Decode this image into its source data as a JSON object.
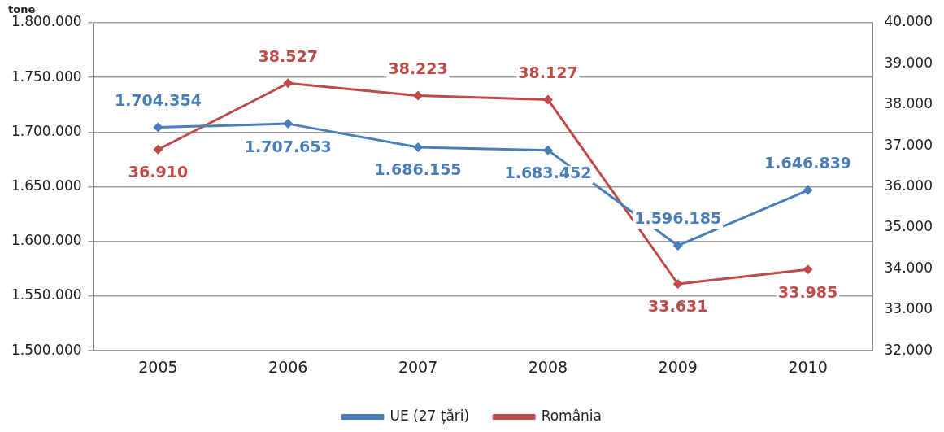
{
  "chart_data": {
    "type": "line",
    "ylabel": "tone",
    "categories": [
      "2005",
      "2006",
      "2007",
      "2008",
      "2009",
      "2010"
    ],
    "series": [
      {
        "name": "UE (27 țări)",
        "color": "#4a7ebb",
        "values": [
          1704354,
          1707653,
          1686155,
          1683452,
          1596185,
          1646839
        ],
        "value_labels": [
          "1.704.354",
          "1.707.653",
          "1.686.155",
          "1.683.452",
          "1.596.185",
          "1.646.839"
        ]
      },
      {
        "name": "România",
        "color": "#be4b48",
        "axis": "y2",
        "values": [
          36910,
          38527,
          38223,
          38127,
          33631,
          33985
        ],
        "value_labels": [
          "36.910",
          "38.527",
          "38.223",
          "38.127",
          "33.631",
          "33.985"
        ]
      }
    ],
    "ylim": [
      1500000,
      1800000
    ],
    "yticks": [
      {
        "value": 1500000,
        "label": "1.500.000"
      },
      {
        "value": 1550000,
        "label": "1.550.000"
      },
      {
        "value": 1600000,
        "label": "1.600.000"
      },
      {
        "value": 1650000,
        "label": "1.650.000"
      },
      {
        "value": 1700000,
        "label": "1.700.000"
      },
      {
        "value": 1750000,
        "label": "1.750.000"
      },
      {
        "value": 1800000,
        "label": "1.800.000"
      }
    ],
    "y2lim": [
      32000,
      40000
    ],
    "y2ticks": [
      {
        "value": 32000,
        "label": "32.000"
      },
      {
        "value": 33000,
        "label": "33.000"
      },
      {
        "value": 34000,
        "label": "34.000"
      },
      {
        "value": 35000,
        "label": "35.000"
      },
      {
        "value": 36000,
        "label": "36.000"
      },
      {
        "value": 37000,
        "label": "37.000"
      },
      {
        "value": 38000,
        "label": "38.000"
      },
      {
        "value": 39000,
        "label": "39.000"
      },
      {
        "value": 40000,
        "label": "40.000"
      }
    ],
    "grid": "y",
    "legend": "bottom",
    "marker": "diamond",
    "line_style": "solid"
  }
}
